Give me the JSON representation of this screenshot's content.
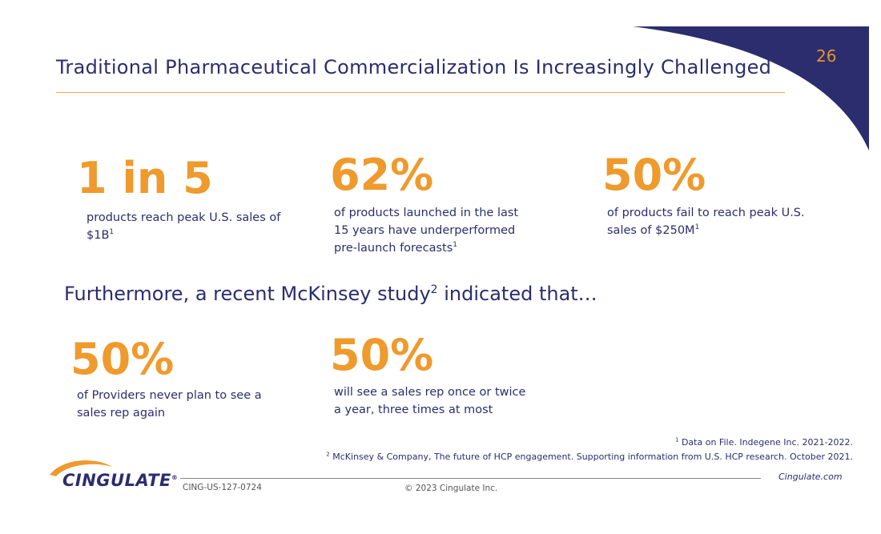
{
  "page_number": "26",
  "title": "Traditional Pharmaceutical Commercialization Is Increasingly Challenged",
  "stats_top": [
    {
      "value": "1 in 5",
      "desc_before": "products reach peak U.S. sales of $1B",
      "sup": "1"
    },
    {
      "value": "62%",
      "desc_before": "of products launched in the last 15 years have underperformed pre-launch forecasts",
      "sup": "1"
    },
    {
      "value": "50%",
      "desc_before": "of products fail to reach peak U.S. sales of $250M",
      "sup": "1"
    }
  ],
  "subheading": {
    "before": "Furthermore, a recent McKinsey study",
    "sup": "2",
    "after": " indicated that…"
  },
  "stats_bottom": [
    {
      "value": "50%",
      "desc": "of Providers never plan to see a sales rep again"
    },
    {
      "value": "50%",
      "desc": "will see a sales rep once or twice a year, three times at most"
    }
  ],
  "footnotes": [
    {
      "sup": "1",
      "text": " Data on File. Indegene Inc. 2021-2022."
    },
    {
      "sup": "2",
      "text": " McKinsey & Company, The future of HCP engagement. Supporting information from U.S. HCP research. October 2021."
    }
  ],
  "footer": {
    "logo_text": "CINGULATE",
    "logo_mark": "®",
    "code": "CING-US-127-0724",
    "copyright": "© 2023 Cingulate Inc.",
    "website": "Cingulate.com"
  },
  "colors": {
    "navy": "#2b2d6e",
    "orange": "#ef9a2d",
    "gold_rule": "#e2b24a"
  }
}
